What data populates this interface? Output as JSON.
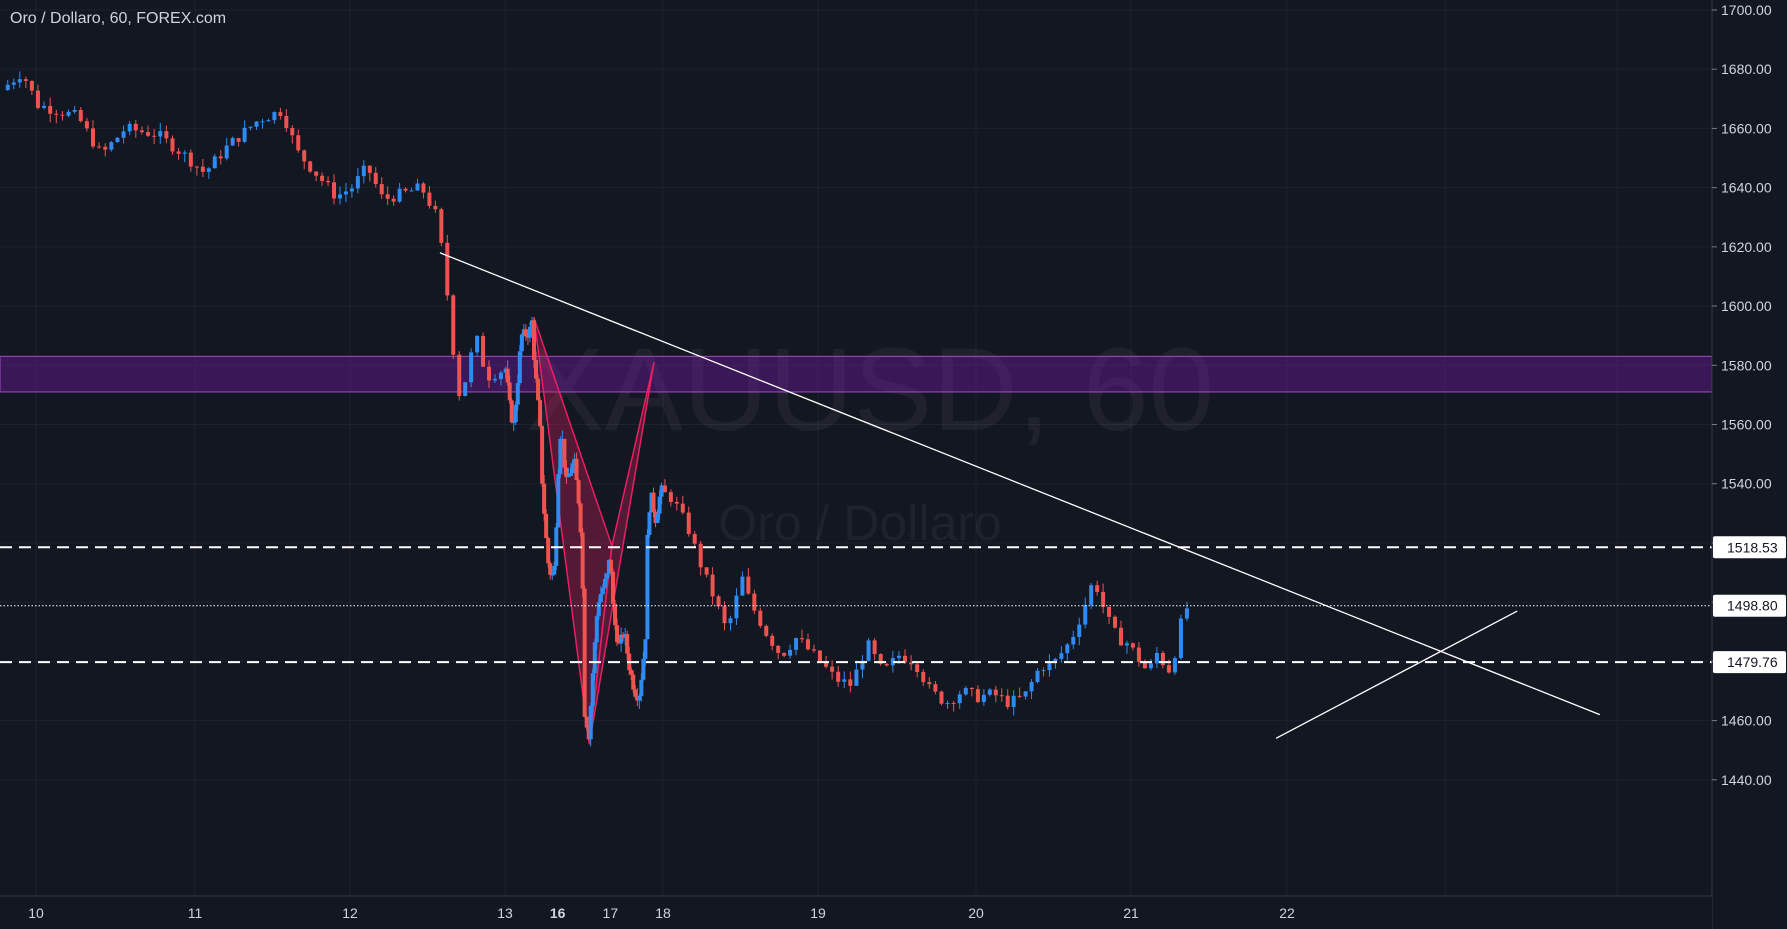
{
  "header": {
    "title": "Oro / Dollaro, 60, FOREX.com"
  },
  "watermark": {
    "symbol": "XAUUSD, 60",
    "name": "Oro / Dollaro"
  },
  "colors": {
    "background": "#131722",
    "grid": "#1e2230",
    "axis_text": "#d1d4dc",
    "bull": "#2f8bf2",
    "bear": "#ef5350",
    "zone": "#6a1b9a",
    "pattern": "#e91e63",
    "trendline": "#ffffff"
  },
  "chart_data": {
    "type": "candlestick",
    "title": "Oro / Dollaro, 60, FOREX.com",
    "xlabel": "",
    "ylabel": "",
    "ylim": [
      1420,
      1700
    ],
    "grid": true,
    "y_ticks": [
      "1700.00",
      "1680.00",
      "1660.00",
      "1640.00",
      "1620.00",
      "1600.00",
      "1580.00",
      "1560.00",
      "1540.00",
      "1520.00",
      "1500.00",
      "1480.00",
      "1460.00",
      "1440.00"
    ],
    "x_ticks": [
      "10",
      "11",
      "12",
      "13",
      "16",
      "17",
      "18",
      "19",
      "20",
      "21",
      "22"
    ],
    "x_tick_bold": [
      "16"
    ],
    "price_tags": [
      {
        "value": 1518.53,
        "label": "1518.53",
        "style": "dashed"
      },
      {
        "value": 1498.8,
        "label": "1498.80",
        "style": "dotted"
      },
      {
        "value": 1479.76,
        "label": "1479.76",
        "style": "dashed"
      }
    ],
    "zone": {
      "from": 1571,
      "to": 1583
    },
    "trendlines": [
      {
        "x1": 12.58,
        "y1": 1618,
        "x2": 21.9,
        "y2": 1462
      },
      {
        "x1": 19.93,
        "y1": 1454,
        "x2": 21.42,
        "y2": 1497
      }
    ],
    "pattern": {
      "X": {
        "x": 13.55,
        "y": 1596
      },
      "A": {
        "x": 14.6,
        "y": 1452
      },
      "B": {
        "x": 15.03,
        "y": 1519
      },
      "C": {
        "x": 15.83,
        "y": 1581
      }
    },
    "series": [
      {
        "name": "XAUUSD",
        "anchors": [
          [
            9.82,
            1673
          ],
          [
            9.95,
            1679
          ],
          [
            10.05,
            1668
          ],
          [
            10.3,
            1664
          ],
          [
            10.45,
            1651
          ],
          [
            10.6,
            1660
          ],
          [
            10.8,
            1658
          ],
          [
            10.95,
            1652
          ],
          [
            11.1,
            1645
          ],
          [
            11.25,
            1654
          ],
          [
            11.45,
            1663
          ],
          [
            11.6,
            1666
          ],
          [
            11.7,
            1652
          ],
          [
            11.85,
            1643
          ],
          [
            11.95,
            1637
          ],
          [
            12.05,
            1640
          ],
          [
            12.15,
            1647
          ],
          [
            12.25,
            1636
          ],
          [
            12.38,
            1638
          ],
          [
            12.5,
            1640
          ],
          [
            12.6,
            1630
          ],
          [
            12.65,
            1612
          ],
          [
            12.7,
            1587
          ],
          [
            12.75,
            1568
          ],
          [
            12.85,
            1590
          ],
          [
            12.92,
            1576
          ],
          [
            13.05,
            1579
          ],
          [
            13.13,
            1566
          ],
          [
            13.2,
            1559
          ],
          [
            13.28,
            1575
          ],
          [
            13.35,
            1590
          ],
          [
            13.5,
            1591
          ],
          [
            13.55,
            1595
          ],
          [
            13.6,
            1580
          ],
          [
            13.7,
            1560
          ],
          [
            13.75,
            1538
          ],
          [
            13.85,
            1514
          ],
          [
            13.92,
            1508
          ],
          [
            13.98,
            1512
          ],
          [
            14.05,
            1545
          ],
          [
            14.1,
            1560
          ],
          [
            14.2,
            1540
          ],
          [
            14.35,
            1548
          ],
          [
            14.45,
            1532
          ],
          [
            14.5,
            1518
          ],
          [
            14.55,
            1463
          ],
          [
            14.6,
            1458
          ],
          [
            14.63,
            1455
          ],
          [
            14.7,
            1475
          ],
          [
            14.8,
            1500
          ],
          [
            14.9,
            1505
          ],
          [
            15.0,
            1510
          ],
          [
            15.03,
            1518
          ],
          [
            15.1,
            1495
          ],
          [
            15.2,
            1485
          ],
          [
            15.3,
            1490
          ],
          [
            15.4,
            1478
          ],
          [
            15.5,
            1470
          ],
          [
            15.58,
            1468
          ],
          [
            15.65,
            1478
          ],
          [
            15.72,
            1492
          ],
          [
            15.75,
            1530
          ],
          [
            15.82,
            1535
          ],
          [
            15.9,
            1528
          ],
          [
            16.0,
            1538
          ],
          [
            16.1,
            1535
          ],
          [
            16.2,
            1525
          ],
          [
            16.3,
            1510
          ],
          [
            16.38,
            1500
          ],
          [
            16.45,
            1490
          ],
          [
            16.55,
            1508
          ],
          [
            16.6,
            1500
          ],
          [
            16.7,
            1490
          ],
          [
            16.8,
            1482
          ],
          [
            16.9,
            1488
          ],
          [
            17.05,
            1480
          ],
          [
            17.15,
            1474
          ],
          [
            17.25,
            1472
          ],
          [
            17.35,
            1486
          ],
          [
            17.45,
            1476
          ],
          [
            17.55,
            1482
          ],
          [
            17.65,
            1480
          ],
          [
            17.75,
            1470
          ],
          [
            17.85,
            1466
          ],
          [
            17.95,
            1470
          ],
          [
            18.05,
            1468
          ],
          [
            18.15,
            1469
          ],
          [
            18.25,
            1466
          ],
          [
            18.35,
            1468
          ],
          [
            18.45,
            1478
          ],
          [
            18.55,
            1480
          ],
          [
            18.65,
            1487
          ],
          [
            18.72,
            1496
          ],
          [
            18.8,
            1508
          ],
          [
            18.88,
            1495
          ],
          [
            18.95,
            1488
          ],
          [
            19.02,
            1486
          ],
          [
            19.15,
            1476
          ],
          [
            19.2,
            1483
          ],
          [
            19.28,
            1477
          ],
          [
            19.32,
            1483
          ],
          [
            19.38,
            1498
          ]
        ]
      }
    ]
  }
}
